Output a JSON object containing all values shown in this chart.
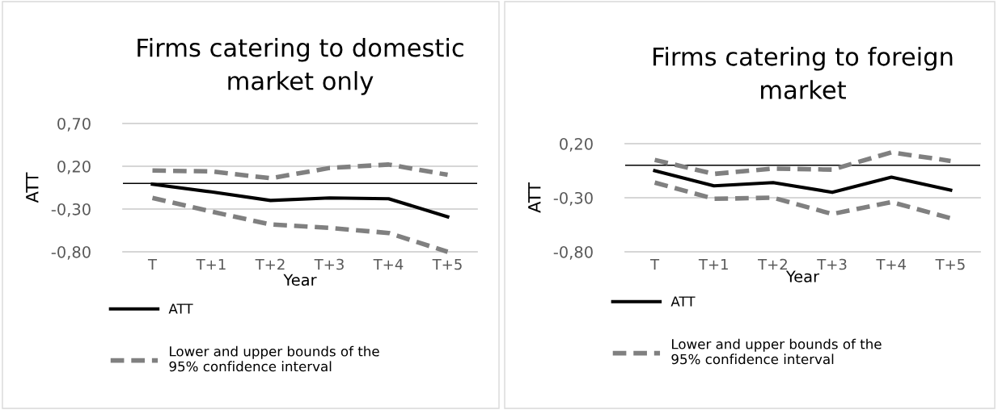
{
  "chart_data": [
    {
      "type": "line",
      "title": "Firms catering to domestic\nmarket only",
      "xlabel": "Year",
      "ylabel": "ATT",
      "categories": [
        "T",
        "T+1",
        "T+2",
        "T+3",
        "T+4",
        "T+5"
      ],
      "series": [
        {
          "name": "ATT",
          "color": "#000000",
          "line_style": "solid",
          "values": [
            -0.01,
            -0.1,
            -0.2,
            -0.17,
            -0.18,
            -0.39
          ]
        },
        {
          "name": "Lower and upper bounds of the\n95% confidence interval",
          "color": "#808080",
          "line_style": "dashed",
          "values": [
            0.15,
            0.14,
            0.06,
            0.18,
            0.22,
            0.1
          ]
        },
        {
          "color": "#808080",
          "line_style": "dashed",
          "values": [
            -0.17,
            -0.33,
            -0.48,
            -0.52,
            -0.58,
            -0.8
          ]
        }
      ],
      "ref_lines": [
        {
          "axis": "y",
          "value": 0,
          "color": "#000000"
        }
      ],
      "ylim": [
        -0.8,
        0.7
      ],
      "yticks": [
        {
          "value": -0.8,
          "label": "-0,80"
        },
        {
          "value": -0.3,
          "label": "-0,30"
        },
        {
          "value": 0.2,
          "label": "0,20"
        },
        {
          "value": 0.7,
          "label": "0,70"
        }
      ],
      "grid": "y",
      "legend": "bottom",
      "marker": "none"
    },
    {
      "type": "line",
      "title": "Firms catering to foreign\nmarket",
      "xlabel": "Year",
      "ylabel": "ATT",
      "categories": [
        "T",
        "T+1",
        "T+2",
        "T+3",
        "T+4",
        "T+5"
      ],
      "series": [
        {
          "name": "ATT",
          "color": "#000000",
          "line_style": "solid",
          "values": [
            -0.05,
            -0.19,
            -0.16,
            -0.25,
            -0.11,
            -0.23
          ]
        },
        {
          "name": "Lower and upper bounds of the\n95% confidence interval",
          "color": "#808080",
          "line_style": "dashed",
          "values": [
            0.05,
            -0.08,
            -0.03,
            -0.04,
            0.12,
            0.04
          ]
        },
        {
          "color": "#808080",
          "line_style": "dashed",
          "values": [
            -0.16,
            -0.31,
            -0.3,
            -0.45,
            -0.34,
            -0.49
          ]
        }
      ],
      "ref_lines": [
        {
          "axis": "y",
          "value": 0,
          "color": "#000000"
        }
      ],
      "ylim": [
        -0.8,
        0.2
      ],
      "yticks": [
        {
          "value": -0.8,
          "label": "-0,80"
        },
        {
          "value": -0.3,
          "label": "-0,30"
        },
        {
          "value": 0.2,
          "label": "0,20"
        }
      ],
      "grid": "y",
      "legend": "bottom",
      "marker": "none"
    }
  ]
}
